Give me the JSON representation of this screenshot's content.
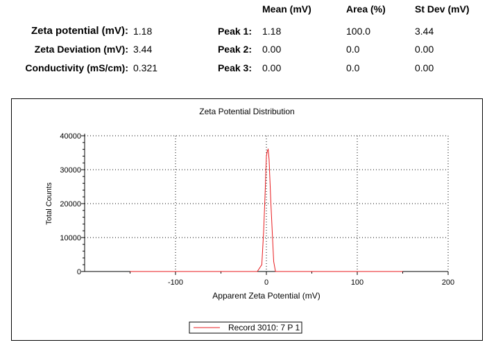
{
  "summary": {
    "columns": {
      "mean": "Mean (mV)",
      "area": "Area (%)",
      "stdev": "St Dev (mV)"
    },
    "metrics": [
      {
        "label": "Zeta potential (mV):",
        "value": "1.18"
      },
      {
        "label": "Zeta Deviation (mV):",
        "value": "3.44"
      },
      {
        "label": "Conductivity (mS/cm):",
        "value": "0.321"
      }
    ],
    "peaks": [
      {
        "label": "Peak 1:",
        "mean": "1.18",
        "area": "100.0",
        "stdev": "3.44"
      },
      {
        "label": "Peak 2:",
        "mean": "0.00",
        "area": "0.0",
        "stdev": "0.00"
      },
      {
        "label": "Peak 3:",
        "mean": "0.00",
        "area": "0.0",
        "stdev": "0.00"
      }
    ]
  },
  "chart_data": {
    "type": "line",
    "title": "Zeta Potential Distribution",
    "xlabel": "Apparent Zeta Potential (mV)",
    "ylabel": "Total Counts",
    "xlim": [
      -200,
      200
    ],
    "ylim": [
      0,
      40000
    ],
    "xticks": [
      -100,
      0,
      100,
      200
    ],
    "yticks": [
      0,
      10000,
      20000,
      30000,
      40000
    ],
    "grid": true,
    "legend_position": "bottom-center",
    "series": [
      {
        "name": "Record 3010: 7 P 1",
        "color": "#e8191c",
        "x": [
          -150,
          -10,
          -5,
          -3,
          -1,
          0,
          1,
          2,
          3,
          5,
          8,
          10,
          150
        ],
        "y": [
          0,
          0,
          2000,
          12000,
          26000,
          34000,
          35500,
          36000,
          33000,
          20000,
          3000,
          0,
          0
        ]
      }
    ]
  }
}
